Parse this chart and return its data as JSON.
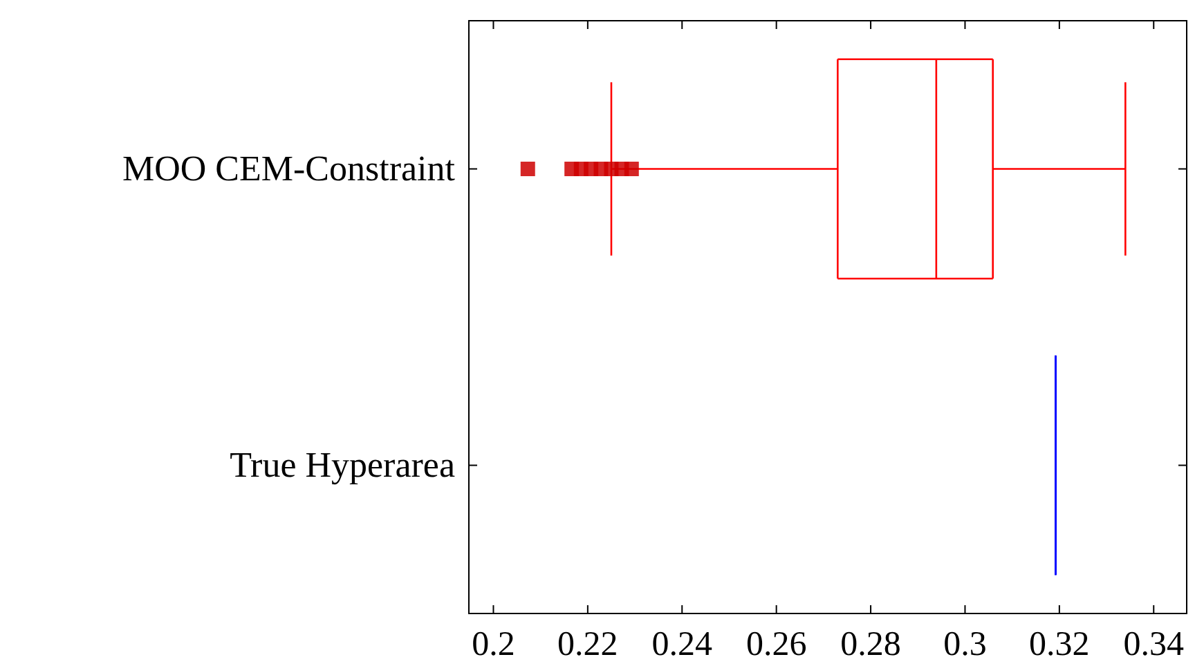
{
  "chart_data": {
    "type": "box",
    "orientation": "horizontal",
    "categories": [
      "MOO CEM-Constraint",
      "True Hyperarea"
    ],
    "boxes": [
      {
        "low": 0.225,
        "q1": 0.273,
        "median": 0.2939,
        "q3": 0.3059,
        "high": 0.334,
        "outliers": [
          0.2073,
          0.2166,
          0.2186,
          0.2207,
          0.2228,
          0.225,
          0.2272,
          0.2293
        ]
      },
      {
        "low": 0.3192,
        "q1": 0.3192,
        "median": 0.3192,
        "q3": 0.3192,
        "high": 0.3192
      }
    ],
    "colors": [
      "#ff0000",
      "#0000ff"
    ],
    "xlim": [
      0.1948,
      0.347
    ],
    "xticks": [
      0.2,
      0.22,
      0.24,
      0.26,
      0.28,
      0.3,
      0.32,
      0.34
    ],
    "marker": "square",
    "grid": false,
    "legend": false
  }
}
